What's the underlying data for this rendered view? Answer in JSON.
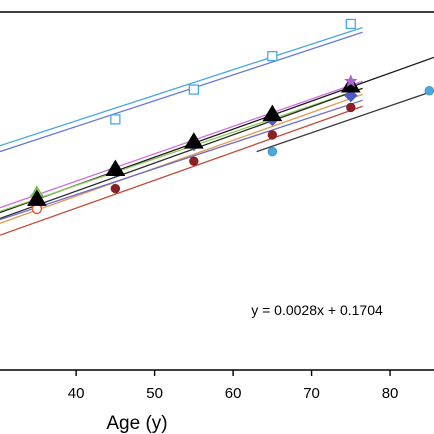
{
  "chart_data": {
    "type": "scatter",
    "xlabel": "Age (y)",
    "ylabel": "",
    "title": "",
    "xlim": [
      30.3,
      85.6
    ],
    "ylim": [
      0.15,
      0.45
    ],
    "x_ticks": [
      40,
      50,
      60,
      70,
      80
    ],
    "grid": false,
    "annotations": [
      {
        "text": "y = 0.0028x + 0.1704",
        "x": 72,
        "y": 0.2
      }
    ],
    "series": [
      {
        "marker": "open-square",
        "color": "#4aa8e0",
        "fill": "none",
        "x": [
          45,
          55,
          65,
          75
        ],
        "y": [
          0.36,
          0.385,
          0.413,
          0.44
        ]
      },
      {
        "marker": "open-circle",
        "color": "#e05a3a",
        "fill": "none",
        "x": [
          35
        ],
        "y": [
          0.285
        ]
      },
      {
        "marker": "circle",
        "color": "#8a1f24",
        "fill": "#8a1f24",
        "x": [
          45,
          55,
          65,
          75
        ],
        "y": [
          0.302,
          0.325,
          0.347,
          0.37
        ]
      },
      {
        "marker": "circle",
        "color": "#3a9ac8",
        "fill": "#4aa8e0",
        "x": [
          65,
          85
        ],
        "y": [
          0.333,
          0.384
        ]
      },
      {
        "marker": "diamond",
        "color": "#4a5ac8",
        "fill": "#4a5ac8",
        "x": [
          35,
          45,
          55,
          65,
          75
        ],
        "y": [
          0.296,
          0.317,
          0.339,
          0.36,
          0.38
        ]
      },
      {
        "marker": "triangle",
        "color": "#7ab848",
        "fill": "#8fcc5a",
        "x": [
          35,
          75
        ],
        "y": [
          0.299,
          0.388
        ]
      },
      {
        "marker": "triangle-large",
        "color": "#000000",
        "fill": "#000000",
        "x": [
          35,
          45,
          55,
          65,
          75
        ],
        "y": [
          0.293,
          0.318,
          0.341,
          0.364,
          0.388
        ]
      },
      {
        "marker": "star",
        "color": "#b060d0",
        "fill": "#b060d0",
        "x": [
          75
        ],
        "y": [
          0.392
        ]
      }
    ],
    "trend_lines": [
      {
        "color": "#4aa8e0",
        "x": [
          30.3,
          76.5
        ],
        "y": [
          0.338,
          0.437
        ]
      },
      {
        "color": "#6a7ad8",
        "x": [
          30.3,
          76.5
        ],
        "y": [
          0.333,
          0.433
        ]
      },
      {
        "color": "#1a1a1a",
        "x": [
          30.3,
          85.6
        ],
        "y": [
          0.282,
          0.412
        ]
      },
      {
        "color": "#d070e0",
        "x": [
          30.3,
          76.5
        ],
        "y": [
          0.286,
          0.392
        ]
      },
      {
        "color": "#8fcc5a",
        "x": [
          30.3,
          76.5
        ],
        "y": [
          0.283,
          0.386
        ]
      },
      {
        "color": "#e09a50",
        "x": [
          30.3,
          76.5
        ],
        "y": [
          0.273,
          0.381
        ]
      },
      {
        "color": "#2a2a2a",
        "x": [
          30.3,
          76.5
        ],
        "y": [
          0.277,
          0.386
        ]
      },
      {
        "color": "#6a6ad0",
        "x": [
          30.3,
          76.5
        ],
        "y": [
          0.276,
          0.376
        ]
      },
      {
        "color": "#c04a3a",
        "x": [
          30.3,
          76.5
        ],
        "y": [
          0.263,
          0.371
        ]
      },
      {
        "color": "#3a3a3a",
        "x": [
          63,
          85.6
        ],
        "y": [
          0.333,
          0.384
        ]
      }
    ]
  }
}
